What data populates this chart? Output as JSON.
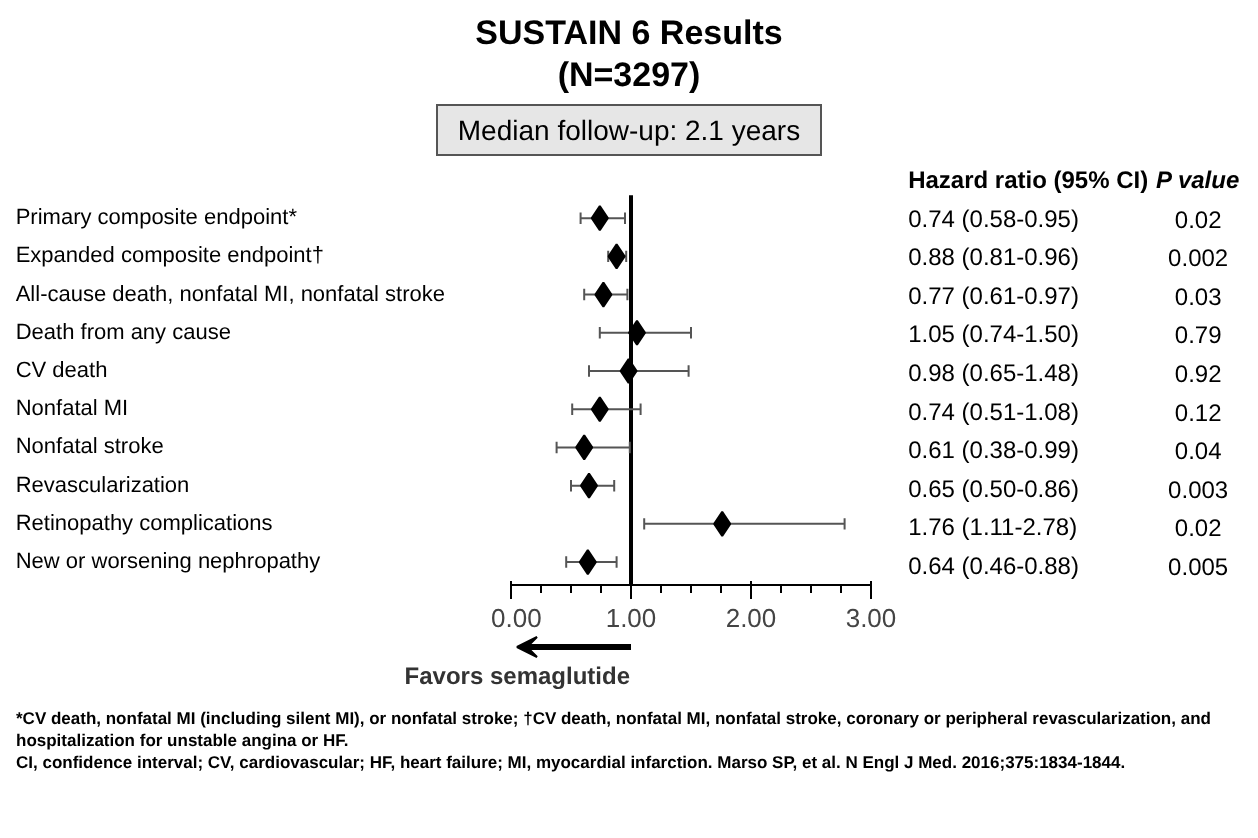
{
  "chart_data": {
    "type": "scatter",
    "orientation": "horizontal",
    "title": "SUSTAIN 6 Results\n(N=3297)",
    "subtitle": "Median follow-up: 2.1 years",
    "categories": [
      "Primary composite endpoint*",
      "Expanded composite endpoint†",
      "All-cause death, nonfatal MI, nonfatal stroke",
      "Death from any cause",
      "CV death",
      "Nonfatal MI",
      "Nonfatal stroke",
      "Revascularization",
      "Retinopathy complications",
      "New or worsening nephropathy"
    ],
    "series": [
      {
        "color": "#000000",
        "values": [
          0.74,
          0.88,
          0.77,
          1.05,
          0.98,
          0.74,
          0.61,
          0.65,
          1.76,
          0.64
        ],
        "errors": [
          [
            0.58,
            0.95
          ],
          [
            0.81,
            0.96
          ],
          [
            0.61,
            0.97
          ],
          [
            0.74,
            1.5
          ],
          [
            0.65,
            1.48
          ],
          [
            0.51,
            1.08
          ],
          [
            0.38,
            0.99
          ],
          [
            0.5,
            0.86
          ],
          [
            1.11,
            2.78
          ],
          [
            0.46,
            0.88
          ]
        ],
        "value_labels": [
          "0.74 (0.58-0.95)",
          "0.88 (0.81-0.96)",
          "0.77 (0.61-0.97)",
          "1.05 (0.74-1.50)",
          "0.98 (0.65-1.48)",
          "0.74 (0.51-1.08)",
          "0.61 (0.38-0.99)",
          "0.65 (0.50-0.86)",
          "1.76 (1.11-2.78)",
          "0.64 (0.46-0.88)"
        ]
      }
    ],
    "marker": "diamond",
    "xlim": [
      0,
      3
    ],
    "xticks": [
      {
        "value": 0,
        "label": "0.00"
      },
      {
        "value": 1,
        "label": "1.00"
      },
      {
        "value": 2,
        "label": "2.00"
      },
      {
        "value": 3,
        "label": "3.00"
      }
    ],
    "ref_lines": [
      {
        "axis": "x",
        "value": 1,
        "color": "#000000"
      }
    ],
    "grid": false,
    "annotations": [
      "Hazard ratio (95% CI)",
      "P value",
      "0.02",
      "0.002",
      "0.03",
      "0.79",
      "0.92",
      "0.12",
      "0.04",
      "0.003",
      "0.02",
      "0.005",
      "Favors semaglutide",
      "*CV death, nonfatal MI (including silent MI), or nonfatal stroke; †CV death, nonfatal MI, nonfatal stroke, coronary or peripheral revascularization, and hospitalization for unstable angina or HF.",
      "CI, confidence interval; CV, cardiovascular; HF, heart failure; MI, myocardial infarction. Marso SP, et al. N Engl J Med. 2016;375:1834-1844."
    ]
  }
}
